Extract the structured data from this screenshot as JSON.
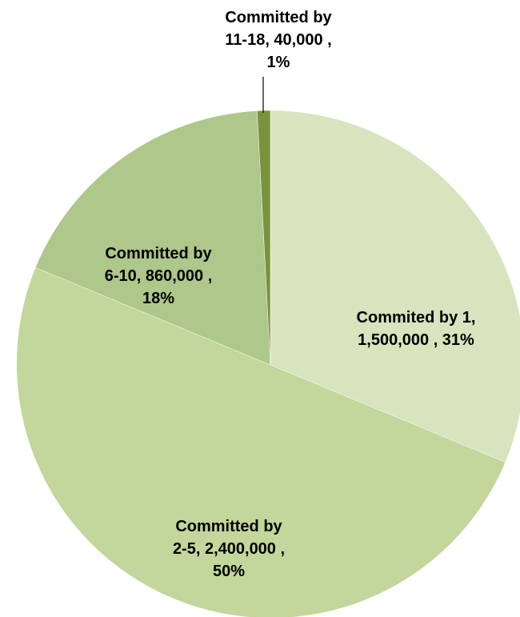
{
  "chart_data": {
    "type": "pie",
    "title": "",
    "start_angle_deg": 0,
    "direction": "clockwise",
    "legend": "none",
    "slices": [
      {
        "category": "Commited by 1",
        "value": 1500000,
        "percent": 31,
        "label_lines": [
          "Commited by 1,",
          "1,500,000 , 31%"
        ],
        "color": "#d7e4bd"
      },
      {
        "category": "Committed by 2-5",
        "value": 2400000,
        "percent": 50,
        "label_lines": [
          "Committed by",
          "2-5,  2,400,000 ,",
          "50%"
        ],
        "color": "#c3d69b"
      },
      {
        "category": "Committed by 6-10",
        "value": 860000,
        "percent": 18,
        "label_lines": [
          "Committed by",
          "6-10,  860,000 ,",
          "18%"
        ],
        "color": "#aec78a"
      },
      {
        "category": "Committed by 11-18",
        "value": 40000,
        "percent": 1,
        "label_lines": [
          "Committed by",
          "11-18,  40,000 ,",
          "1%"
        ],
        "color": "#77933c"
      }
    ]
  }
}
